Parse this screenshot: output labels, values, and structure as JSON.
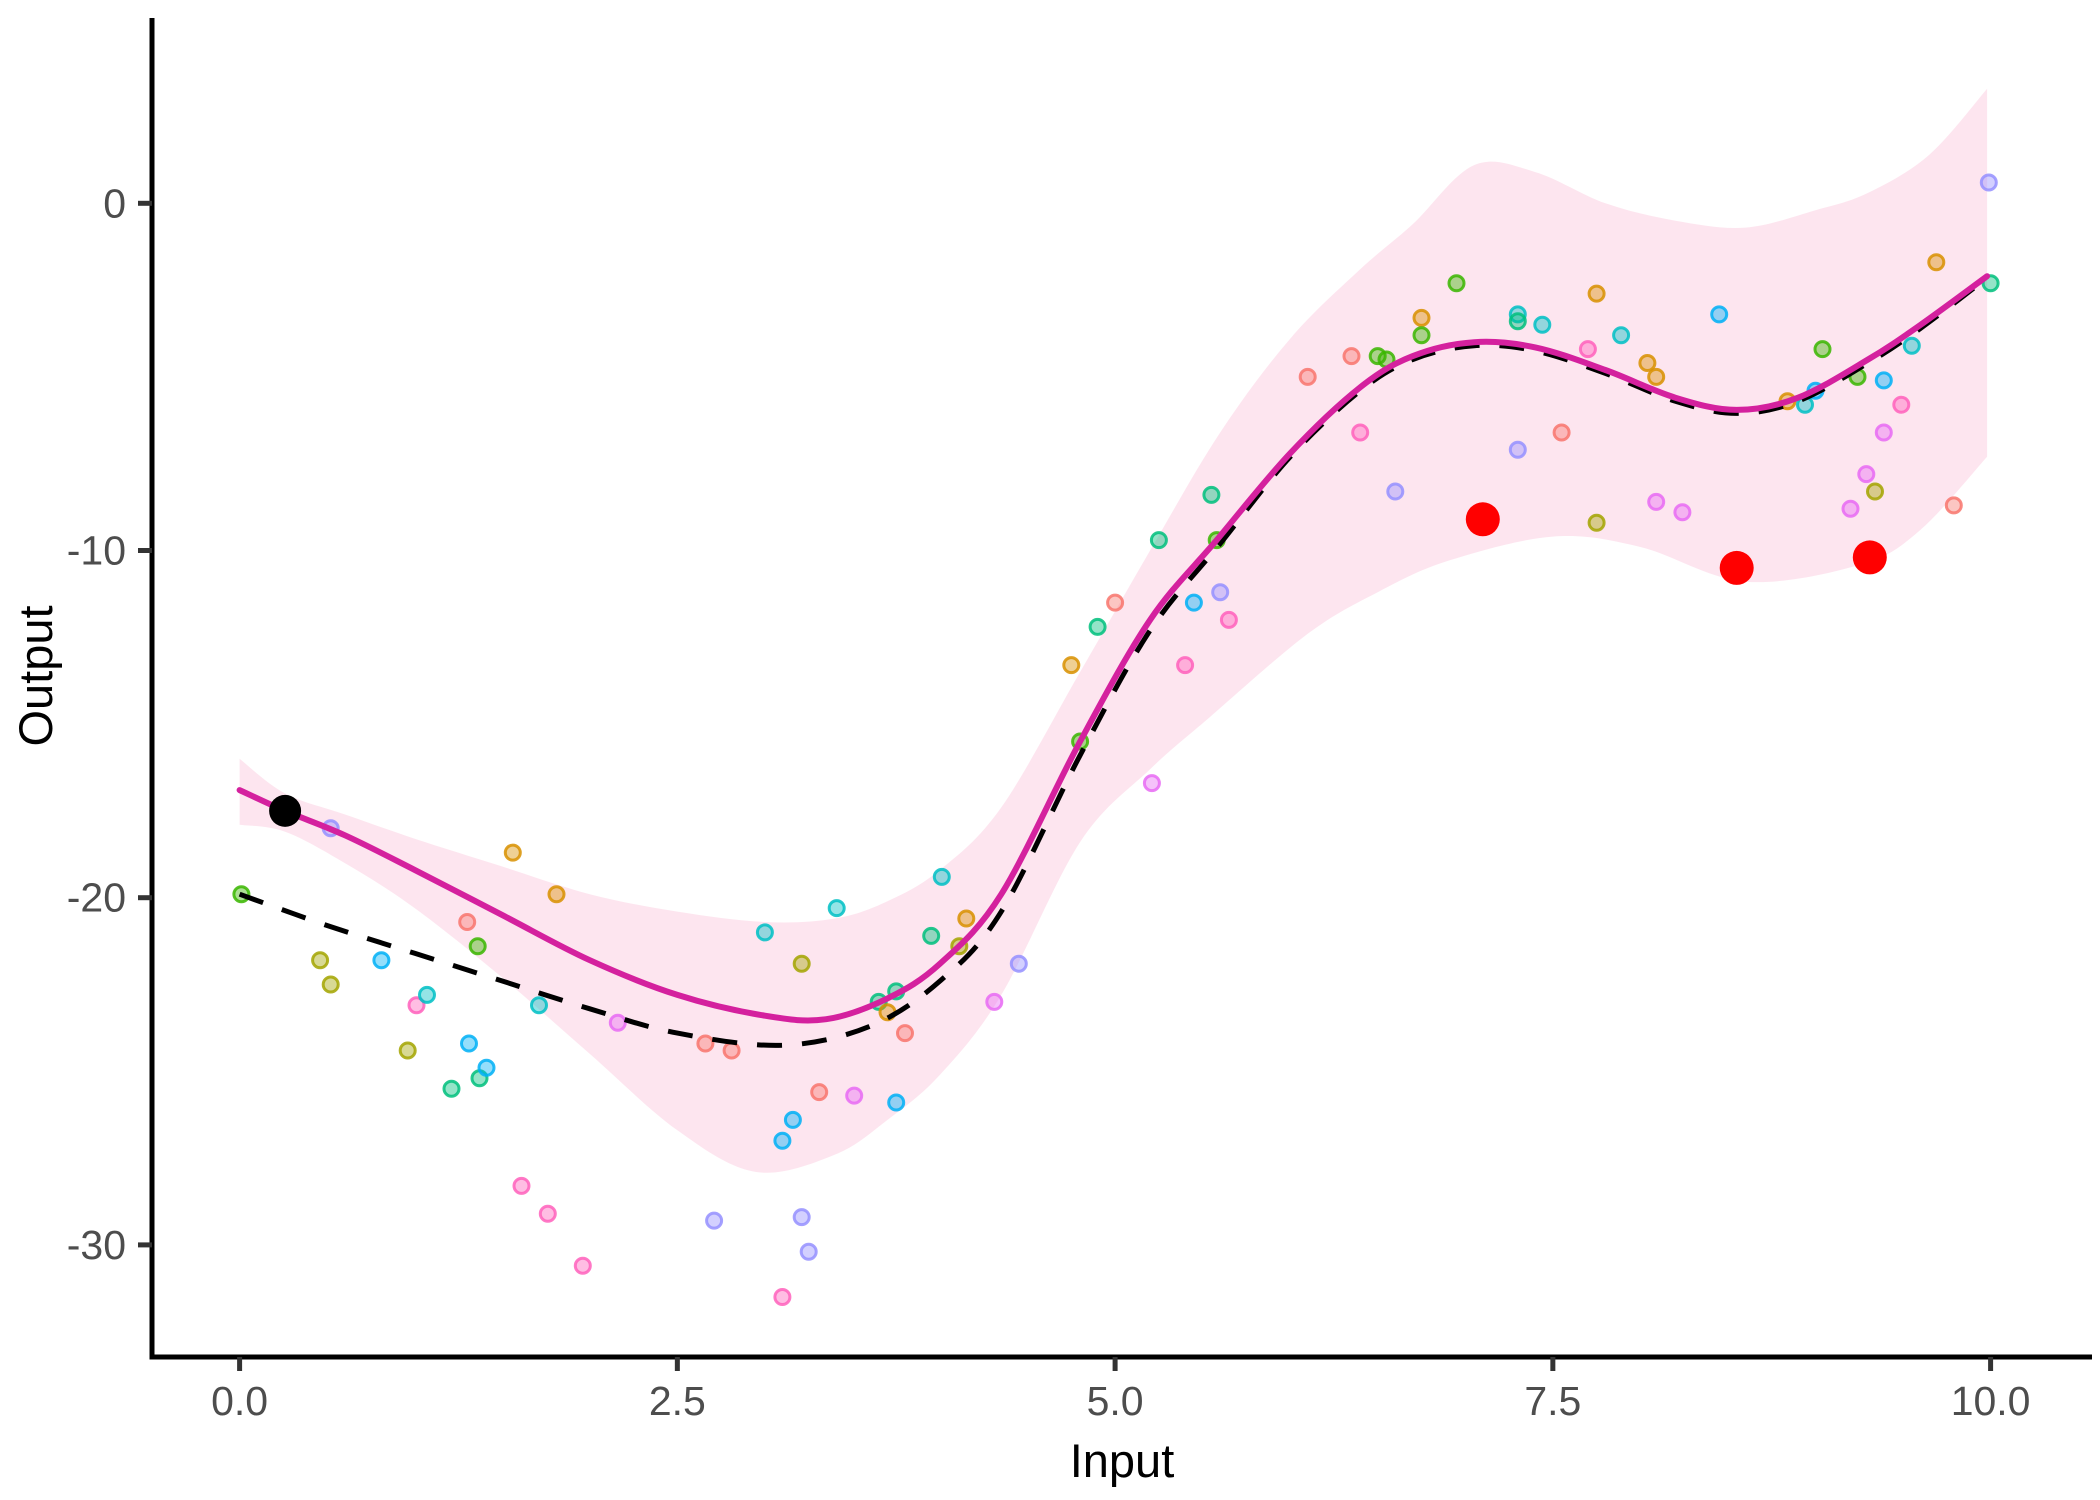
{
  "chart_data": {
    "type": "scatter",
    "title": "",
    "xlabel": "Input",
    "ylabel": "Output",
    "xlim": [
      -0.5,
      10.56
    ],
    "ylim": [
      -33.2,
      5.4
    ],
    "grid": "off",
    "legend": "none",
    "x_ticks": {
      "values": [
        0,
        2.5,
        5,
        7.5,
        10
      ],
      "labels": [
        "0.0",
        "2.5",
        "5.0",
        "7.5",
        "10.0"
      ]
    },
    "y_ticks": {
      "values": [
        0,
        -10,
        -20,
        -30
      ],
      "labels": [
        "0",
        "-10",
        "-20",
        "-30"
      ]
    },
    "colors": {
      "accent_line": "#D4219E",
      "dashed_line": "#000000",
      "ribbon_fill": "rgba(247,168,201,0.30)",
      "highlight_red": "#FF0000",
      "highlight_black": "#000000",
      "axis": "#000000",
      "tick": "#333333",
      "tick_text": "#4d4d4d",
      "palette": {
        "salmon": "#F8766D",
        "orange": "#D89000",
        "olive": "#A3A500",
        "green": "#39B600",
        "emerald": "#00BF7D",
        "turquoise": "#00BFC4",
        "sky": "#00B0F6",
        "lavender": "#9590FF",
        "orchid": "#E76BF3",
        "pink": "#FF62BC"
      }
    },
    "points": [
      [
        0.01,
        -19.9,
        "green"
      ],
      [
        0.46,
        -21.8,
        "olive"
      ],
      [
        0.52,
        -18.0,
        "lavender"
      ],
      [
        0.52,
        -22.5,
        "olive"
      ],
      [
        0.81,
        -21.8,
        "sky"
      ],
      [
        0.96,
        -24.4,
        "olive"
      ],
      [
        1.01,
        -23.1,
        "pink"
      ],
      [
        1.07,
        -22.8,
        "turquoise"
      ],
      [
        1.21,
        -25.5,
        "emerald"
      ],
      [
        1.3,
        -20.7,
        "salmon"
      ],
      [
        1.31,
        -24.2,
        "sky"
      ],
      [
        1.36,
        -21.4,
        "green"
      ],
      [
        1.37,
        -25.2,
        "emerald"
      ],
      [
        1.41,
        -24.9,
        "sky"
      ],
      [
        1.56,
        -18.7,
        "orange"
      ],
      [
        1.61,
        -28.3,
        "pink"
      ],
      [
        1.71,
        -23.1,
        "turquoise"
      ],
      [
        1.76,
        -29.1,
        "pink"
      ],
      [
        1.81,
        -19.9,
        "orange"
      ],
      [
        1.96,
        -30.6,
        "pink"
      ],
      [
        2.16,
        -23.6,
        "orchid"
      ],
      [
        2.66,
        -24.2,
        "salmon"
      ],
      [
        2.71,
        -29.3,
        "lavender"
      ],
      [
        2.81,
        -24.4,
        "salmon"
      ],
      [
        3.0,
        -21.0,
        "turquoise"
      ],
      [
        3.1,
        -27.0,
        "sky"
      ],
      [
        3.1,
        -31.5,
        "pink"
      ],
      [
        3.16,
        -26.4,
        "sky"
      ],
      [
        3.21,
        -21.9,
        "olive"
      ],
      [
        3.21,
        -29.2,
        "lavender"
      ],
      [
        3.25,
        -30.2,
        "lavender"
      ],
      [
        3.31,
        -25.6,
        "salmon"
      ],
      [
        3.41,
        -20.3,
        "turquoise"
      ],
      [
        3.51,
        -25.7,
        "orchid"
      ],
      [
        3.65,
        -23.0,
        "emerald"
      ],
      [
        3.7,
        -23.3,
        "orange"
      ],
      [
        3.75,
        -22.7,
        "emerald"
      ],
      [
        3.75,
        -25.9,
        "sky"
      ],
      [
        3.8,
        -23.9,
        "salmon"
      ],
      [
        3.95,
        -21.1,
        "emerald"
      ],
      [
        4.01,
        -19.4,
        "turquoise"
      ],
      [
        4.11,
        -21.4,
        "olive"
      ],
      [
        4.15,
        -20.6,
        "orange"
      ],
      [
        4.31,
        -23.0,
        "orchid"
      ],
      [
        4.45,
        -21.9,
        "lavender"
      ],
      [
        4.75,
        -13.3,
        "orange"
      ],
      [
        4.8,
        -15.5,
        "green"
      ],
      [
        4.9,
        -12.2,
        "emerald"
      ],
      [
        5.0,
        -11.5,
        "salmon"
      ],
      [
        5.21,
        -16.7,
        "orchid"
      ],
      [
        5.25,
        -9.7,
        "emerald"
      ],
      [
        5.4,
        -13.3,
        "pink"
      ],
      [
        5.45,
        -11.5,
        "sky"
      ],
      [
        5.55,
        -8.4,
        "emerald"
      ],
      [
        5.58,
        -9.7,
        "green"
      ],
      [
        5.6,
        -11.2,
        "lavender"
      ],
      [
        5.65,
        -12.0,
        "pink"
      ],
      [
        6.1,
        -5.0,
        "salmon"
      ],
      [
        6.35,
        -4.4,
        "salmon"
      ],
      [
        6.4,
        -6.6,
        "pink"
      ],
      [
        6.5,
        -4.4,
        "green"
      ],
      [
        6.55,
        -4.5,
        "green"
      ],
      [
        6.6,
        -8.3,
        "lavender"
      ],
      [
        6.75,
        -3.3,
        "orange"
      ],
      [
        6.75,
        -3.8,
        "green"
      ],
      [
        6.95,
        -2.3,
        "green"
      ],
      [
        7.3,
        -3.2,
        "turquoise"
      ],
      [
        7.3,
        -3.4,
        "emerald"
      ],
      [
        7.3,
        -7.1,
        "lavender"
      ],
      [
        7.44,
        -3.5,
        "turquoise"
      ],
      [
        7.55,
        -6.6,
        "salmon"
      ],
      [
        7.7,
        -4.2,
        "pink"
      ],
      [
        7.75,
        -2.6,
        "orange"
      ],
      [
        7.75,
        -9.2,
        "olive"
      ],
      [
        7.89,
        -3.8,
        "turquoise"
      ],
      [
        8.04,
        -4.6,
        "orange"
      ],
      [
        8.09,
        -5.0,
        "orange"
      ],
      [
        8.09,
        -8.6,
        "orchid"
      ],
      [
        8.24,
        -8.9,
        "orchid"
      ],
      [
        8.45,
        -3.2,
        "sky"
      ],
      [
        8.84,
        -5.7,
        "orange"
      ],
      [
        8.94,
        -5.8,
        "turquoise"
      ],
      [
        9.0,
        -5.4,
        "sky"
      ],
      [
        9.04,
        -4.2,
        "green"
      ],
      [
        9.2,
        -8.8,
        "orchid"
      ],
      [
        9.24,
        -5.0,
        "green"
      ],
      [
        9.29,
        -7.8,
        "orchid"
      ],
      [
        9.34,
        -8.3,
        "olive"
      ],
      [
        9.39,
        -5.1,
        "sky"
      ],
      [
        9.39,
        -6.6,
        "orchid"
      ],
      [
        9.49,
        -5.8,
        "pink"
      ],
      [
        9.55,
        -4.1,
        "turquoise"
      ],
      [
        9.69,
        -1.7,
        "orange"
      ],
      [
        9.79,
        -8.7,
        "salmon"
      ],
      [
        9.99,
        0.6,
        "lavender"
      ],
      [
        10.0,
        -2.3,
        "emerald"
      ]
    ],
    "highlight_points": {
      "black": [
        [
          0.26,
          -17.5
        ]
      ],
      "red": [
        [
          7.1,
          -9.1
        ],
        [
          8.55,
          -10.5
        ],
        [
          9.31,
          -10.2
        ]
      ]
    },
    "curves": {
      "gp_mean": [
        [
          0,
          -16.9
        ],
        [
          0.26,
          -17.5
        ],
        [
          0.6,
          -18.2
        ],
        [
          1,
          -19.2
        ],
        [
          1.5,
          -20.5
        ],
        [
          2,
          -21.8
        ],
        [
          2.5,
          -22.8
        ],
        [
          3,
          -23.4
        ],
        [
          3.35,
          -23.5
        ],
        [
          3.7,
          -22.9
        ],
        [
          4,
          -21.9
        ],
        [
          4.35,
          -19.9
        ],
        [
          4.8,
          -15.5
        ],
        [
          5.2,
          -12.0
        ],
        [
          5.58,
          -9.7
        ],
        [
          6,
          -7.2
        ],
        [
          6.4,
          -5.3
        ],
        [
          6.7,
          -4.4
        ],
        [
          7.05,
          -4.0
        ],
        [
          7.4,
          -4.15
        ],
        [
          7.8,
          -4.8
        ],
        [
          8.2,
          -5.6
        ],
        [
          8.55,
          -5.95
        ],
        [
          8.9,
          -5.6
        ],
        [
          9.3,
          -4.5
        ],
        [
          9.6,
          -3.5
        ],
        [
          9.98,
          -2.1
        ]
      ],
      "true_dashed": [
        [
          0,
          -19.9
        ],
        [
          0.5,
          -20.8
        ],
        [
          1,
          -21.6
        ],
        [
          1.5,
          -22.4
        ],
        [
          2,
          -23.2
        ],
        [
          2.5,
          -23.9
        ],
        [
          3.1,
          -24.25
        ],
        [
          3.6,
          -23.7
        ],
        [
          4,
          -22.4
        ],
        [
          4.35,
          -20.4
        ],
        [
          4.8,
          -15.9
        ],
        [
          5.2,
          -12.3
        ],
        [
          5.6,
          -9.8
        ],
        [
          6,
          -7.3
        ],
        [
          6.4,
          -5.4
        ],
        [
          6.7,
          -4.5
        ],
        [
          7.05,
          -4.1
        ],
        [
          7.4,
          -4.25
        ],
        [
          7.8,
          -4.9
        ],
        [
          8.2,
          -5.7
        ],
        [
          8.55,
          -6.05
        ],
        [
          8.9,
          -5.7
        ],
        [
          9.3,
          -4.6
        ],
        [
          9.6,
          -3.6
        ],
        [
          9.98,
          -2.15
        ]
      ]
    },
    "ribbon": {
      "upper": [
        [
          0,
          -16.0
        ],
        [
          0.26,
          -17.0
        ],
        [
          0.6,
          -17.6
        ],
        [
          1,
          -18.3
        ],
        [
          1.5,
          -19.1
        ],
        [
          2,
          -19.9
        ],
        [
          2.5,
          -20.4
        ],
        [
          3,
          -20.7
        ],
        [
          3.4,
          -20.6
        ],
        [
          3.7,
          -20.1
        ],
        [
          4,
          -19.2
        ],
        [
          4.35,
          -17.4
        ],
        [
          4.8,
          -13.5
        ],
        [
          5.2,
          -10.0
        ],
        [
          5.6,
          -6.6
        ],
        [
          6,
          -3.9
        ],
        [
          6.4,
          -1.9
        ],
        [
          6.7,
          -0.6
        ],
        [
          7.05,
          1.1
        ],
        [
          7.4,
          0.9
        ],
        [
          7.8,
          0.0
        ],
        [
          8.2,
          -0.5
        ],
        [
          8.6,
          -0.7
        ],
        [
          9,
          -0.2
        ],
        [
          9.3,
          0.3
        ],
        [
          9.65,
          1.4
        ],
        [
          9.98,
          3.3
        ]
      ],
      "lower": [
        [
          0,
          -17.9
        ],
        [
          0.26,
          -18.1
        ],
        [
          0.6,
          -19.0
        ],
        [
          1,
          -20.3
        ],
        [
          1.5,
          -22.3
        ],
        [
          2,
          -24.5
        ],
        [
          2.5,
          -26.7
        ],
        [
          2.95,
          -27.9
        ],
        [
          3.4,
          -27.4
        ],
        [
          3.7,
          -26.4
        ],
        [
          4,
          -25.1
        ],
        [
          4.35,
          -22.8
        ],
        [
          4.8,
          -18.4
        ],
        [
          5.2,
          -16.3
        ],
        [
          5.54,
          -14.8
        ],
        [
          6.1,
          -12.4
        ],
        [
          6.5,
          -11.2
        ],
        [
          6.9,
          -10.3
        ],
        [
          7.5,
          -9.6
        ],
        [
          8.0,
          -9.9
        ],
        [
          8.6,
          -10.9
        ],
        [
          9.26,
          -10.4
        ],
        [
          9.6,
          -9.4
        ],
        [
          9.98,
          -7.3
        ]
      ]
    },
    "style": {
      "point_radius": 7.5,
      "point_fill_opacity": 0.42,
      "point_stroke_opacity": 0.85,
      "point_stroke_width": 3,
      "red_radius": 17,
      "black_radius": 16,
      "mean_line_width": 6,
      "dashed_line_width": 5,
      "dash_pattern": "25 20"
    }
  }
}
